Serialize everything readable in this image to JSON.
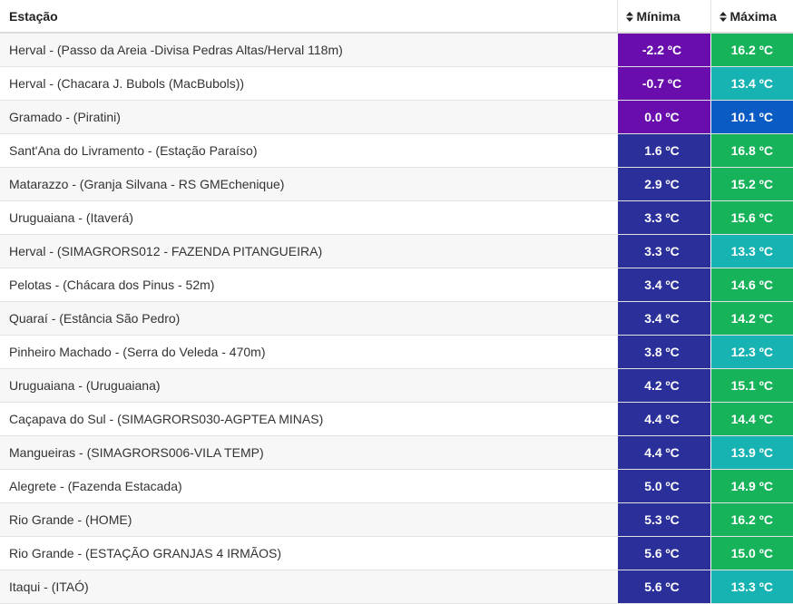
{
  "headers": {
    "station": "Estação",
    "min": "Mínima",
    "max": "Máxima"
  },
  "icons": {
    "sort": "sort-icon"
  },
  "rows": [
    {
      "station": "Herval - (Passo da Areia -Divisa Pedras Altas/Herval 118m)",
      "min": "-2.2 ºC",
      "max": "16.2 ºC",
      "min_color": "#6a0dad",
      "max_color": "#17b35a"
    },
    {
      "station": "Herval - (Chacara J. Bubols (MacBubols))",
      "min": "-0.7 ºC",
      "max": "13.4 ºC",
      "min_color": "#6a0dad",
      "max_color": "#17b3b3"
    },
    {
      "station": "Gramado - (Piratini)",
      "min": "0.0 ºC",
      "max": "10.1 ºC",
      "min_color": "#6a0dad",
      "max_color": "#0a5bc4"
    },
    {
      "station": "Sant'Ana do Livramento - (Estação Paraíso)",
      "min": "1.6 ºC",
      "max": "16.8 ºC",
      "min_color": "#2a2f9a",
      "max_color": "#17b35a"
    },
    {
      "station": "Matarazzo - (Granja Silvana - RS GMEchenique)",
      "min": "2.9 ºC",
      "max": "15.2 ºC",
      "min_color": "#2a2f9a",
      "max_color": "#17b35a"
    },
    {
      "station": "Uruguaiana - (Itaverá)",
      "min": "3.3 ºC",
      "max": "15.6 ºC",
      "min_color": "#2a2f9a",
      "max_color": "#17b35a"
    },
    {
      "station": "Herval - (SIMAGRORS012 - FAZENDA PITANGUEIRA)",
      "min": "3.3 ºC",
      "max": "13.3 ºC",
      "min_color": "#2a2f9a",
      "max_color": "#17b3b3"
    },
    {
      "station": "Pelotas - (Chácara dos Pinus - 52m)",
      "min": "3.4 ºC",
      "max": "14.6 ºC",
      "min_color": "#2a2f9a",
      "max_color": "#17b35a"
    },
    {
      "station": "Quaraí - (Estância São Pedro)",
      "min": "3.4 ºC",
      "max": "14.2 ºC",
      "min_color": "#2a2f9a",
      "max_color": "#17b35a"
    },
    {
      "station": "Pinheiro Machado - (Serra do Veleda - 470m)",
      "min": "3.8 ºC",
      "max": "12.3 ºC",
      "min_color": "#2a2f9a",
      "max_color": "#17b3b3"
    },
    {
      "station": "Uruguaiana - (Uruguaiana)",
      "min": "4.2 ºC",
      "max": "15.1 ºC",
      "min_color": "#2a2f9a",
      "max_color": "#17b35a"
    },
    {
      "station": "Caçapava do Sul - (SIMAGRORS030-AGPTEA MINAS)",
      "min": "4.4 ºC",
      "max": "14.4 ºC",
      "min_color": "#2a2f9a",
      "max_color": "#17b35a"
    },
    {
      "station": "Mangueiras - (SIMAGRORS006-VILA TEMP)",
      "min": "4.4 ºC",
      "max": "13.9 ºC",
      "min_color": "#2a2f9a",
      "max_color": "#17b3b3"
    },
    {
      "station": "Alegrete - (Fazenda Estacada)",
      "min": "5.0 ºC",
      "max": "14.9 ºC",
      "min_color": "#2a2f9a",
      "max_color": "#17b35a"
    },
    {
      "station": "Rio Grande - (HOME)",
      "min": "5.3 ºC",
      "max": "16.2 ºC",
      "min_color": "#2a2f9a",
      "max_color": "#17b35a"
    },
    {
      "station": "Rio Grande - (ESTAÇÃO GRANJAS 4 IRMÃOS)",
      "min": "5.6 ºC",
      "max": "15.0 ºC",
      "min_color": "#2a2f9a",
      "max_color": "#17b35a"
    },
    {
      "station": "Itaqui - (ITAÓ)",
      "min": "5.6 ºC",
      "max": "13.3 ºC",
      "min_color": "#2a2f9a",
      "max_color": "#17b3b3"
    }
  ]
}
